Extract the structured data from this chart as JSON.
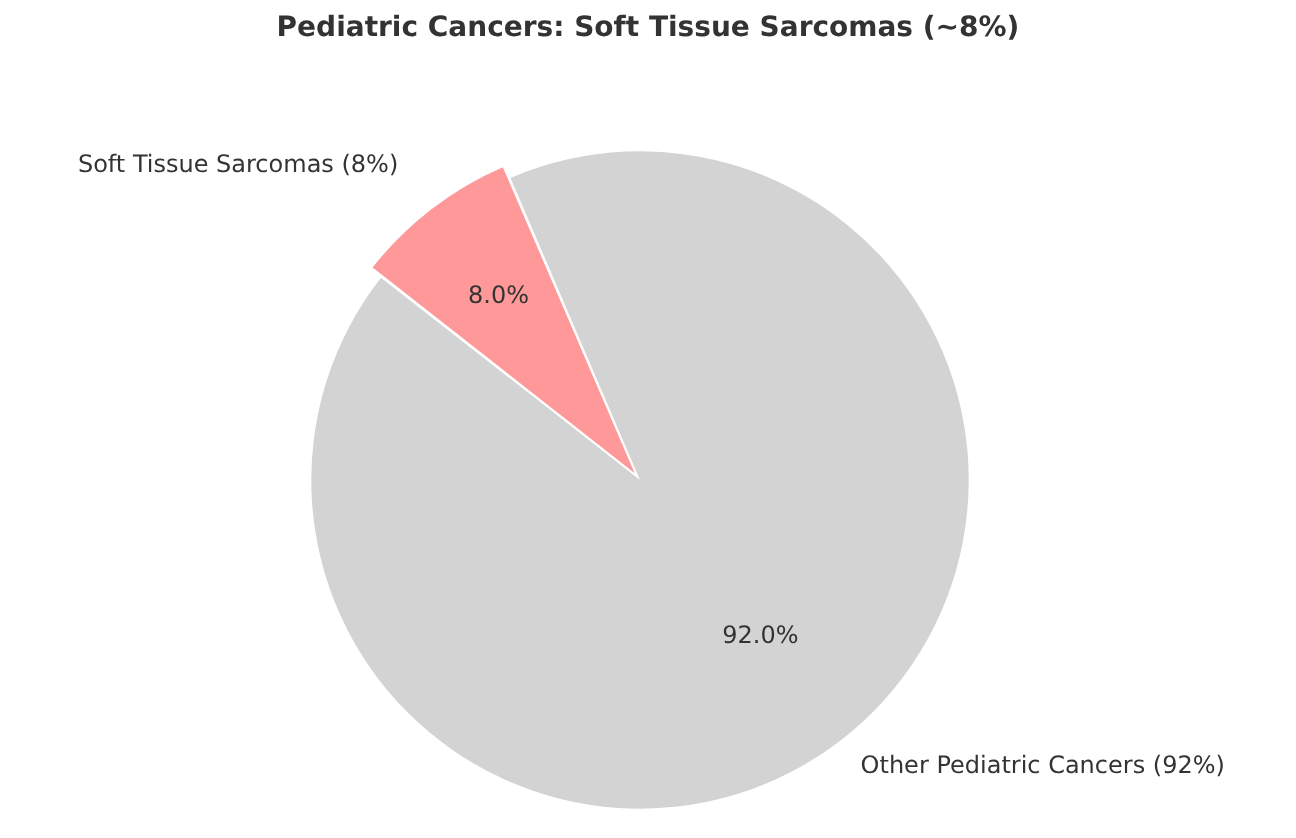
{
  "chart_data": {
    "type": "pie",
    "title": "Pediatric Cancers: Soft Tissue Sarcomas (~8%)",
    "categories": [
      "Soft Tissue Sarcomas (8%)",
      "Other Pediatric Cancers (92%)"
    ],
    "values": [
      8,
      92
    ],
    "colors": [
      "#ff9999",
      "#d3d3d3"
    ],
    "value_labels": [
      "8.0%",
      "92.0%"
    ]
  }
}
